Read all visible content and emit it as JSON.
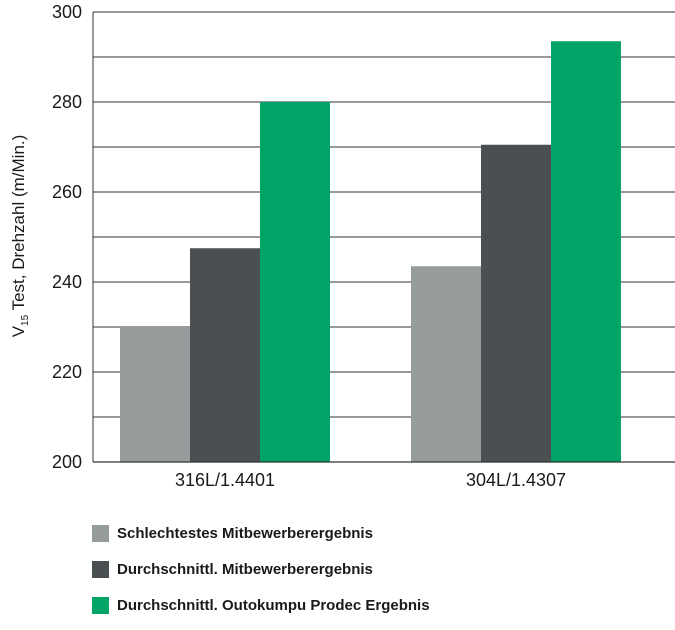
{
  "chart_data": {
    "type": "bar",
    "categories": [
      "316L/1.4401",
      "304L/1.4307"
    ],
    "series": [
      {
        "name": "Schlechtestes Mitbewerberergebnis",
        "values": [
          230,
          243.5
        ],
        "color": "#959c9b"
      },
      {
        "name": "Durchschnittl. Mitbewerberergebnis",
        "values": [
          247.5,
          270.5
        ],
        "color": "#4a4f51"
      },
      {
        "name": "Durchschnittl. Outokumpu Prodec Ergebnis",
        "values": [
          280,
          293.5
        ],
        "color": "#00a467"
      }
    ],
    "ylabel_main": "V",
    "ylabel_sub": "15",
    "ylabel_rest": " Test, Drehzahl (m/Min.)",
    "ylim": [
      200,
      300
    ],
    "yticks": [
      "200",
      "220",
      "240",
      "260",
      "280",
      "300"
    ],
    "minor_gridlines": true,
    "legend_position": "bottom-left"
  }
}
